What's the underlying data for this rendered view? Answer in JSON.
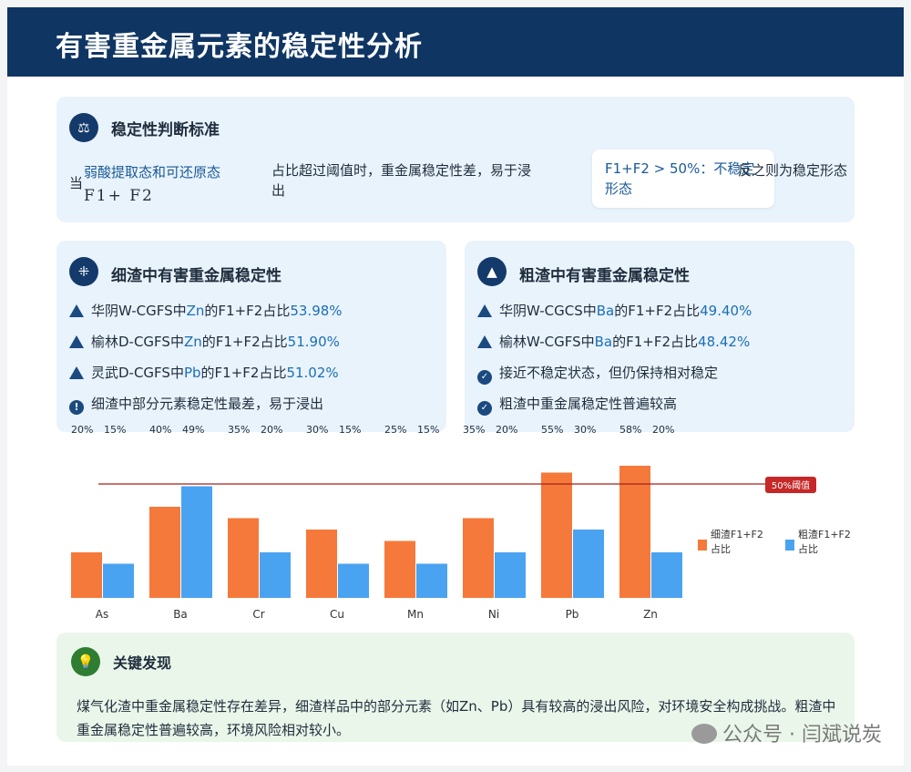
{
  "header": {
    "title": "有害重金属元素的稳定性分析"
  },
  "criteria": {
    "title": "稳定性判断标准",
    "prefix": "当",
    "highlight": "弱酸提取态和可还原态",
    "formula": "F1+ F2",
    "condition": "占比超过阈值时，重金属稳定性差，易于浸出",
    "threshold_box": "F1+F2 > 50%：不稳定形态",
    "otherwise": "反之则为稳定形态"
  },
  "fine": {
    "title": "细渣中有害重金属稳定性",
    "items": [
      {
        "icon": "warning-triangle-icon",
        "pre": "华阴W-CGFS中",
        "elem": "Zn",
        "mid": "的F1+F2占比",
        "val": "53.98%"
      },
      {
        "icon": "warning-triangle-icon",
        "pre": "榆林D-CGFS中",
        "elem": "Zn",
        "mid": "的F1+F2占比",
        "val": "51.90%"
      },
      {
        "icon": "warning-triangle-icon",
        "pre": "灵武D-CGFS中",
        "elem": "Pb",
        "mid": "的F1+F2占比",
        "val": "51.02%"
      },
      {
        "icon": "exclamation-circle-icon",
        "pre": "细渣中部分元素稳定性最差，易于浸出",
        "elem": "",
        "mid": "",
        "val": ""
      }
    ]
  },
  "coarse": {
    "title": "粗渣中有害重金属稳定性",
    "items": [
      {
        "icon": "warning-triangle-icon",
        "pre": "华阴W-CGCS中",
        "elem": "Ba",
        "mid": "的F1+F2占比",
        "val": "49.40%"
      },
      {
        "icon": "warning-triangle-icon",
        "pre": "榆林W-CGFS中",
        "elem": "Ba",
        "mid": "的F1+F2占比",
        "val": "48.42%"
      },
      {
        "icon": "check-circle-icon",
        "pre": "接近不稳定状态，但仍保持相对稳定",
        "elem": "",
        "mid": "",
        "val": ""
      },
      {
        "icon": "check-circle-icon",
        "pre": "粗渣中重金属稳定性普遍较高",
        "elem": "",
        "mid": "",
        "val": ""
      }
    ]
  },
  "chart_data": {
    "type": "bar",
    "categories": [
      "As",
      "Ba",
      "Cr",
      "Cu",
      "Mn",
      "Ni",
      "Pb",
      "Zn"
    ],
    "series": [
      {
        "name": "细渣F1+F2占比",
        "color": "#f5793a",
        "values": [
          20,
          40,
          35,
          30,
          25,
          35,
          55,
          58
        ],
        "labels": [
          "20%",
          "40%",
          "35%",
          "30%",
          "25%",
          "35%",
          "55%",
          "58%"
        ]
      },
      {
        "name": "粗渣F1+F2占比",
        "color": "#4aa3f0",
        "values": [
          15,
          49,
          20,
          15,
          15,
          20,
          30,
          20
        ],
        "labels": [
          "15%",
          "49%",
          "20%",
          "15%",
          "15%",
          "20%",
          "30%",
          "20%"
        ]
      }
    ],
    "threshold": {
      "value": 50,
      "label": "50%阈值",
      "color": "#a8201a"
    },
    "ylim": [
      0,
      60
    ]
  },
  "finding": {
    "title": "关键发现",
    "text": "煤气化渣中重金属稳定性存在差异，细渣样品中的部分元素（如Zn、Pb）具有较高的浸出风险，对环境安全构成挑战。粗渣中重金属稳定性普遍较高，环境风险相对较小。"
  },
  "watermark": "公众号 · 闫斌说炭"
}
